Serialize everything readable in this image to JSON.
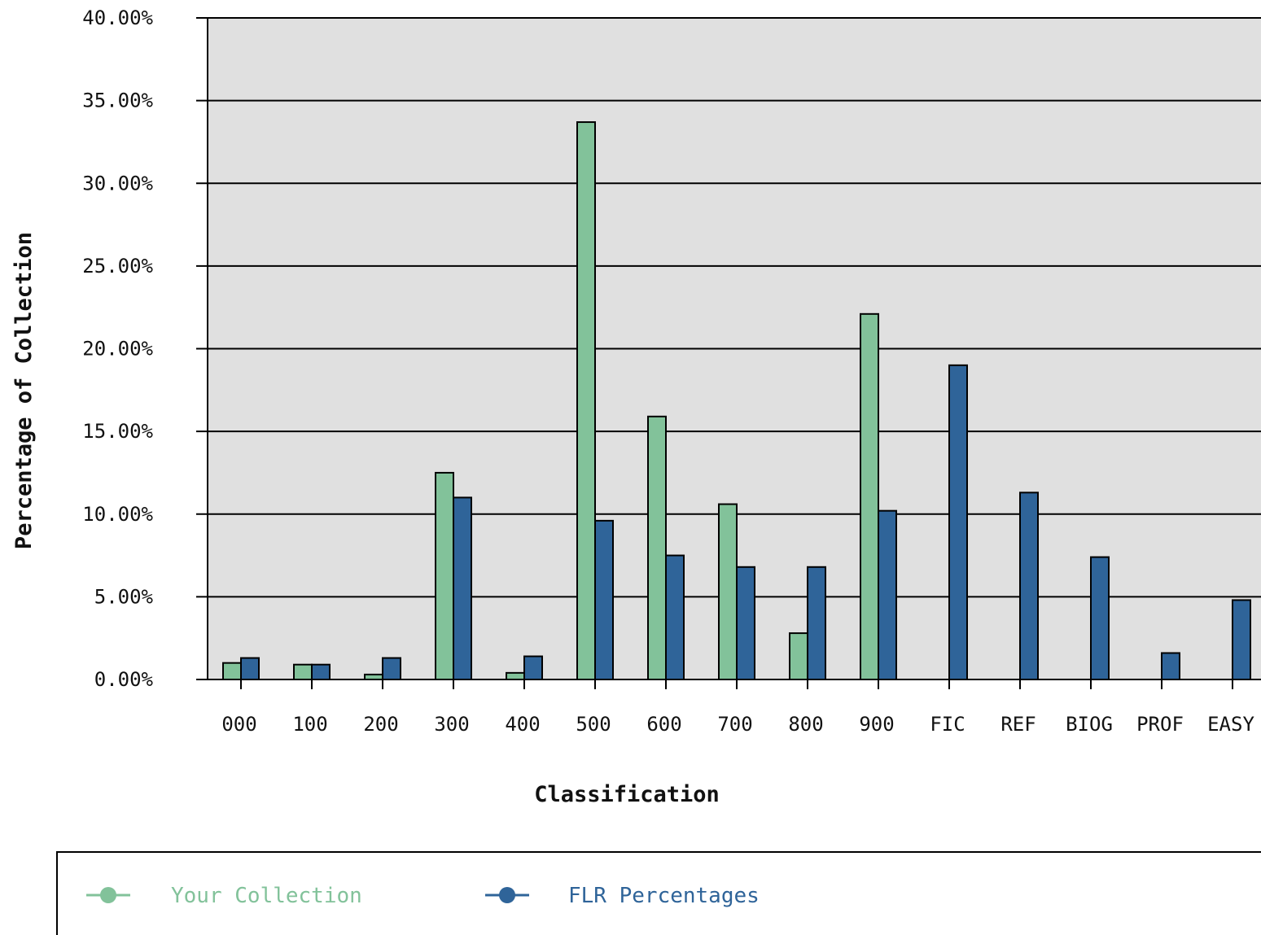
{
  "chart_data": {
    "type": "bar",
    "title": "",
    "xlabel": "Classification",
    "ylabel": "Percentage of Collection",
    "ylim": [
      0,
      40
    ],
    "yticks": [
      "0.00%",
      "5.00%",
      "10.00%",
      "15.00%",
      "20.00%",
      "25.00%",
      "30.00%",
      "35.00%",
      "40.00%"
    ],
    "grid": true,
    "legend_position": "bottom",
    "categories": [
      "000",
      "100",
      "200",
      "300",
      "400",
      "500",
      "600",
      "700",
      "800",
      "900",
      "FIC",
      "REF",
      "BIOG",
      "PROF",
      "EASY"
    ],
    "series": [
      {
        "name": "Your Collection",
        "color": "#82c29a",
        "values": [
          1.0,
          0.9,
          0.3,
          12.5,
          0.4,
          33.7,
          15.9,
          10.6,
          2.8,
          22.1,
          0,
          0,
          0,
          0,
          0
        ]
      },
      {
        "name": "FLR Percentages",
        "color": "#2f6499",
        "values": [
          1.3,
          0.9,
          1.3,
          11.0,
          1.4,
          9.6,
          7.5,
          6.8,
          6.8,
          10.2,
          19.0,
          11.3,
          7.4,
          1.6,
          4.8
        ]
      }
    ]
  },
  "colors": {
    "plot_background": "#e0e0e0",
    "grid": "#000000"
  },
  "icons": {
    "legend_marker": "circle-line-icon"
  }
}
